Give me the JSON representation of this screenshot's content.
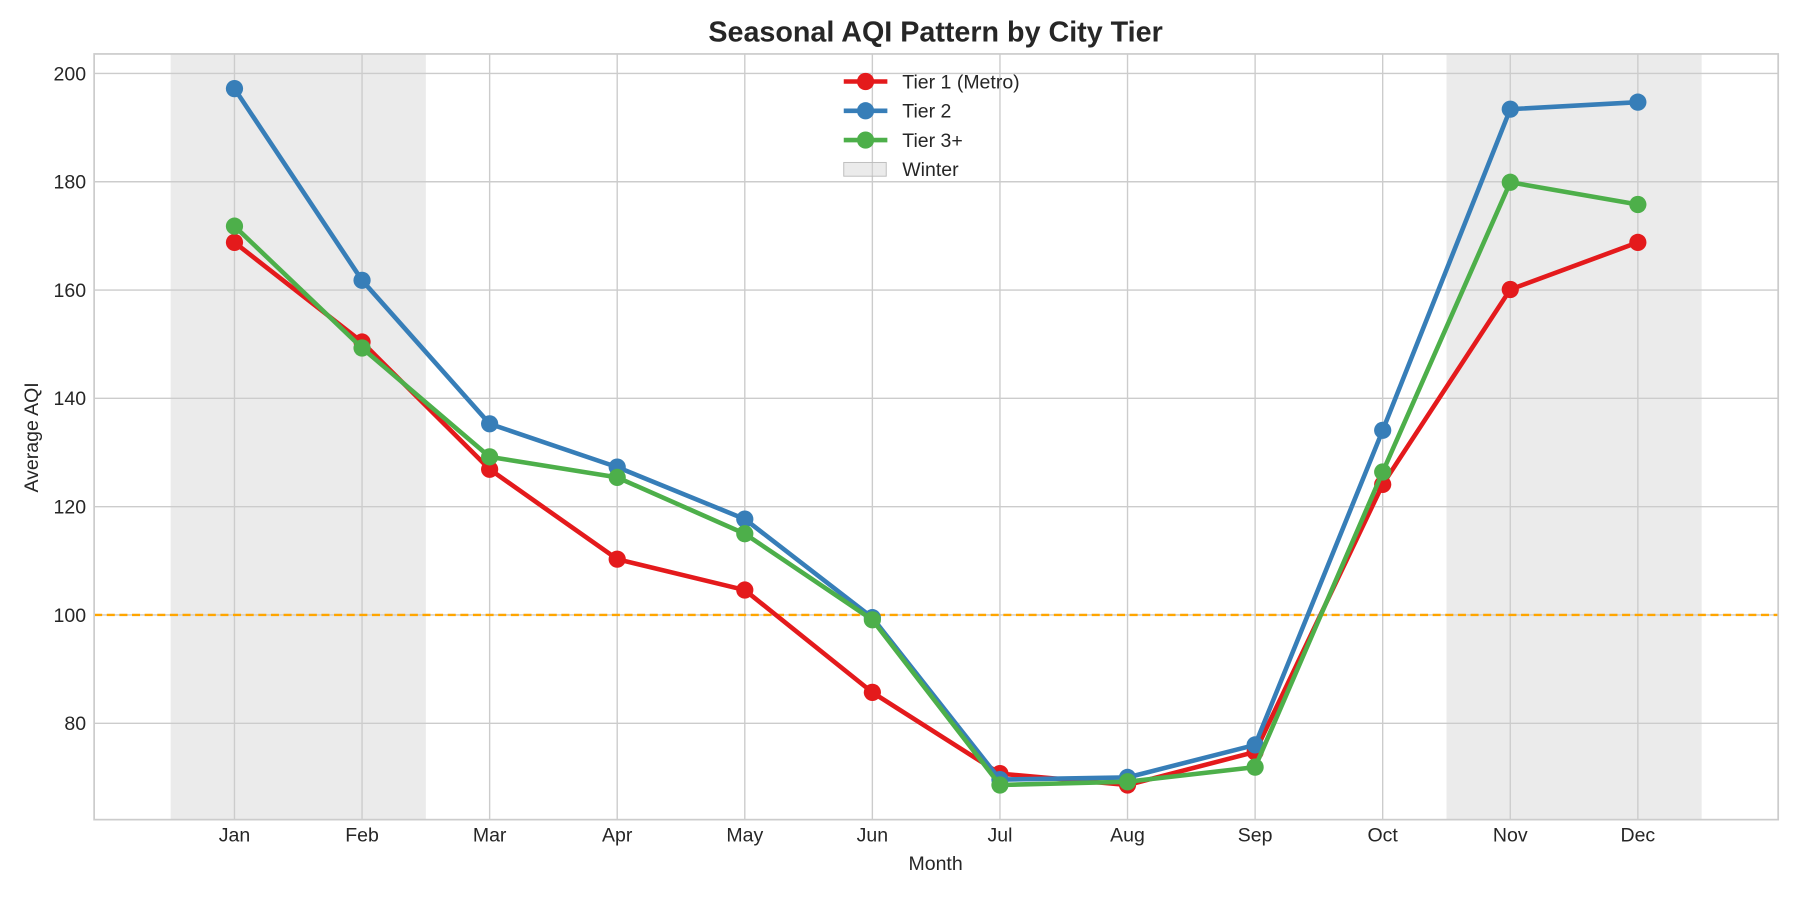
{
  "chart_data": {
    "type": "line",
    "title": "Seasonal AQI Pattern by City Tier",
    "xlabel": "Month",
    "ylabel": "Average AQI",
    "categories": [
      "Jan",
      "Feb",
      "Mar",
      "Apr",
      "May",
      "Jun",
      "Jul",
      "Aug",
      "Sep",
      "Oct",
      "Nov",
      "Dec"
    ],
    "ylim": [
      62.2,
      203.6
    ],
    "yticks": [
      80,
      100,
      120,
      140,
      160,
      180,
      200
    ],
    "grid": true,
    "legend_position": "top-center",
    "series": [
      {
        "name": "Tier 1 (Metro)",
        "color": "#e41a1c",
        "values": [
          168.8,
          150.4,
          126.9,
          110.3,
          104.6,
          85.7,
          70.7,
          68.6,
          74.7,
          124.1,
          160.1,
          168.8
        ]
      },
      {
        "name": "Tier 2",
        "color": "#377eb8",
        "values": [
          197.2,
          161.8,
          135.3,
          127.3,
          117.7,
          99.5,
          69.6,
          70.0,
          76.0,
          134.1,
          193.4,
          194.7
        ]
      },
      {
        "name": "Tier 3+",
        "color": "#4daf4a",
        "values": [
          171.8,
          149.3,
          129.2,
          125.4,
          115.0,
          99.1,
          68.6,
          69.2,
          71.9,
          126.4,
          179.9,
          175.8
        ]
      }
    ],
    "shaded_regions": {
      "name": "Winter",
      "color": "#d3d3d3",
      "ranges": [
        [
          "Jan",
          "Feb"
        ],
        [
          "Nov",
          "Dec"
        ]
      ]
    },
    "reference_line": {
      "value": 100,
      "color": "#ffa500",
      "style": "dashed"
    }
  }
}
